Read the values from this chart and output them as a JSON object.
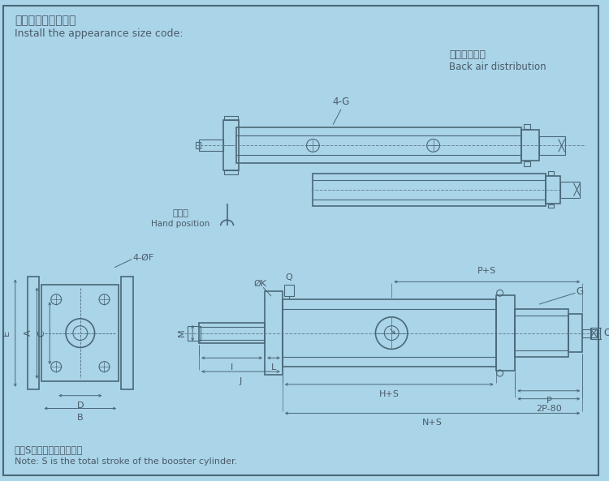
{
  "bg_color": "#aad4e8",
  "line_color": "#4a6878",
  "text_color": "#4a5a68",
  "title_cn": "安装外观尺寸代码：",
  "title_en": "Install the appearance size code:",
  "subtitle_cn": "背面气口分布",
  "subtitle_en": "Back air distribution",
  "note_cn": "注：S为增压缸的总行程。",
  "note_en": "Note: S is the total stroke of the booster cylinder.",
  "hand_cn": "扳手位",
  "hand_en": "Hand position",
  "label_4G": "4-G",
  "label_4phiF": "4-ØF",
  "label_phiK": "ØK",
  "label_Q": "Q",
  "label_G": "G",
  "label_O": "O",
  "label_E": "E",
  "label_A": "A",
  "label_C": "C",
  "label_D": "D",
  "label_B": "B",
  "label_M": "M",
  "label_I": "I",
  "label_J": "J",
  "label_L": "L",
  "label_PS": "P+S",
  "label_HS": "H+S",
  "label_NS": "N+S",
  "label_2P80": "2P-80",
  "label_P": "P"
}
